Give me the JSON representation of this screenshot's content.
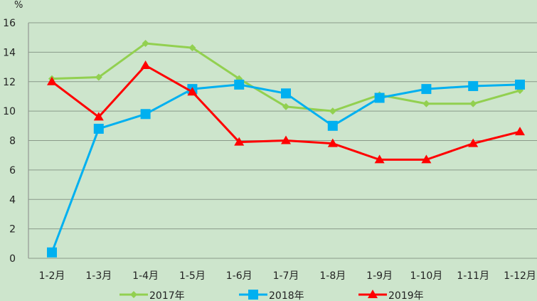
{
  "chart_data": {
    "type": "line",
    "title": "",
    "xlabel": "",
    "ylabel": "%",
    "ylim": [
      0,
      16
    ],
    "yticks": [
      0,
      2,
      4,
      6,
      8,
      10,
      12,
      14,
      16
    ],
    "grid": true,
    "legend_position": "bottom",
    "categories": [
      "1-2月",
      "1-3月",
      "1-4月",
      "1-5月",
      "1-6月",
      "1-7月",
      "1-8月",
      "1-9月",
      "1-10月",
      "1-11月",
      "1-12月"
    ],
    "series": [
      {
        "name": "2017年",
        "color": "#92d050",
        "marker": "diamond",
        "values": [
          12.2,
          12.3,
          14.6,
          14.3,
          12.2,
          10.3,
          10.0,
          11.1,
          10.5,
          10.5,
          11.4
        ]
      },
      {
        "name": "2018年",
        "color": "#00b0f0",
        "marker": "square",
        "values": [
          0.4,
          8.8,
          9.8,
          11.5,
          11.8,
          11.2,
          9.0,
          10.9,
          11.5,
          11.7,
          11.8
        ]
      },
      {
        "name": "2019年",
        "color": "#ff0000",
        "marker": "triangle",
        "values": [
          12.0,
          9.6,
          13.1,
          11.3,
          7.9,
          8.0,
          7.8,
          6.7,
          6.7,
          7.8,
          8.6
        ]
      }
    ]
  }
}
